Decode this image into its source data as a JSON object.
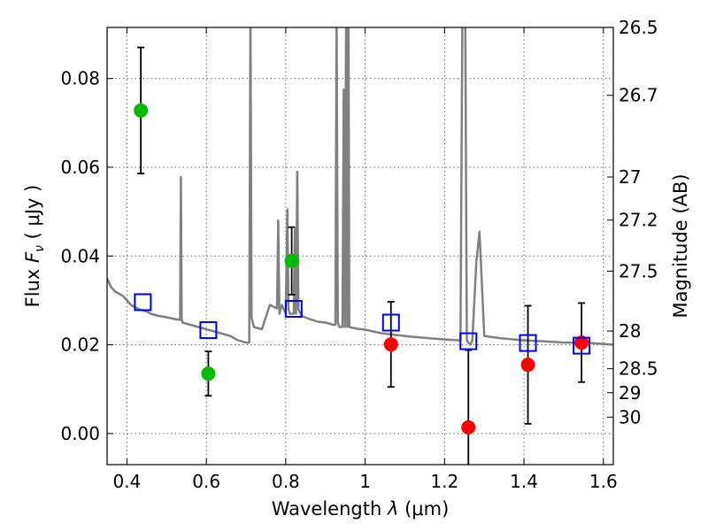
{
  "chart_data": {
    "type": "scatter",
    "xlabel_prefix": "Wavelength",
    "xlabel_symbol": "λ",
    "xlabel_unit": "(μm)",
    "ylabel_prefix": "Flux",
    "ylabel_symbol": "F",
    "ylabel_sub": "ν",
    "ylabel_unit": "( μJy )",
    "y2label": "Magnitude (AB)",
    "xlim": [
      0.35,
      1.625
    ],
    "ylim": [
      -0.007,
      0.0915
    ],
    "grid": true,
    "x_ticks": [
      0.4,
      0.6,
      0.8,
      1.0,
      1.2,
      1.4,
      1.6
    ],
    "x_tick_labels": [
      "0.4",
      "0.6",
      "0.8",
      "1",
      "1.2",
      "1.4",
      "1.6"
    ],
    "y_ticks": [
      0.0,
      0.02,
      0.04,
      0.06,
      0.08
    ],
    "y_tick_labels": [
      "0.00",
      "0.02",
      "0.04",
      "0.06",
      "0.08"
    ],
    "y2_ticks": [
      {
        "label": "26.5",
        "flux": 0.0915
      },
      {
        "label": "26.7",
        "flux": 0.0762
      },
      {
        "label": "27",
        "flux": 0.0578
      },
      {
        "label": "27.2",
        "flux": 0.0481
      },
      {
        "label": "27.5",
        "flux": 0.0366
      },
      {
        "label": "28",
        "flux": 0.0231
      },
      {
        "label": "28.5",
        "flux": 0.0146
      },
      {
        "label": "29",
        "flux": 0.0092
      },
      {
        "label": "30",
        "flux": 0.0037
      }
    ],
    "series": [
      {
        "kind": "line",
        "color": "#808080",
        "x": [
          0.35,
          0.36,
          0.37,
          0.38,
          0.39,
          0.4,
          0.41,
          0.42,
          0.43,
          0.45,
          0.46,
          0.48,
          0.5,
          0.52,
          0.534,
          0.536,
          0.538,
          0.54,
          0.56,
          0.58,
          0.6,
          0.62,
          0.64,
          0.66,
          0.68,
          0.7,
          0.708,
          0.711,
          0.714,
          0.72,
          0.74,
          0.76,
          0.778,
          0.781,
          0.784,
          0.79,
          0.8,
          0.804,
          0.807,
          0.81,
          0.82,
          0.823,
          0.826,
          0.829,
          0.832,
          0.84,
          0.86,
          0.88,
          0.9,
          0.92,
          0.925,
          0.928,
          0.931,
          0.935,
          0.943,
          0.946,
          0.949,
          0.952,
          0.955,
          0.958,
          0.96,
          0.98,
          1.0,
          1.04,
          1.08,
          1.12,
          1.16,
          1.2,
          1.24,
          1.245,
          1.248,
          1.252,
          1.256,
          1.26,
          1.265,
          1.27,
          1.28,
          1.288,
          1.3,
          1.34,
          1.4,
          1.45,
          1.5,
          1.55,
          1.6,
          1.625
        ],
        "y": [
          0.035,
          0.033,
          0.032,
          0.0315,
          0.031,
          0.03,
          0.029,
          0.0285,
          0.028,
          0.0275,
          0.027,
          0.0265,
          0.0262,
          0.0258,
          0.0256,
          0.0578,
          0.0258,
          0.025,
          0.0245,
          0.024,
          0.0235,
          0.023,
          0.0225,
          0.022,
          0.021,
          0.0205,
          0.0205,
          0.095,
          0.026,
          0.024,
          0.0235,
          0.029,
          0.0282,
          0.048,
          0.027,
          0.029,
          0.027,
          0.0505,
          0.028,
          0.027,
          0.027,
          0.046,
          0.027,
          0.059,
          0.028,
          0.0265,
          0.0258,
          0.0252,
          0.025,
          0.0245,
          0.0245,
          0.095,
          0.025,
          0.024,
          0.024,
          0.0775,
          0.024,
          0.095,
          0.024,
          0.095,
          0.024,
          0.0236,
          0.0234,
          0.0226,
          0.0222,
          0.0218,
          0.0215,
          0.0212,
          0.021,
          0.095,
          0.095,
          0.095,
          0.021,
          0.0205,
          0.02,
          0.021,
          0.0385,
          0.0455,
          0.022,
          0.0215,
          0.021,
          0.0208,
          0.0205,
          0.0205,
          0.0202,
          0.02
        ]
      },
      {
        "kind": "errorbar",
        "color": "#00bb00",
        "x": [
          0.435,
          0.605,
          0.815
        ],
        "y": [
          0.0728,
          0.0135,
          0.0389
        ],
        "err": [
          0.0142,
          0.005,
          0.0076
        ]
      },
      {
        "kind": "errorbar",
        "color": "#ff0000",
        "x": [
          1.065,
          1.26,
          1.41,
          1.545
        ],
        "y": [
          0.0201,
          0.0014,
          0.0155,
          0.0205
        ],
        "err": [
          0.0096,
          0.0174,
          0.0133,
          0.0089
        ]
      },
      {
        "kind": "square",
        "color": "#0000ff",
        "x": [
          0.44,
          0.605,
          0.82,
          1.065,
          1.26,
          1.41,
          1.545
        ],
        "y": [
          0.0296,
          0.0233,
          0.0281,
          0.025,
          0.0208,
          0.0204,
          0.0198
        ]
      }
    ]
  }
}
